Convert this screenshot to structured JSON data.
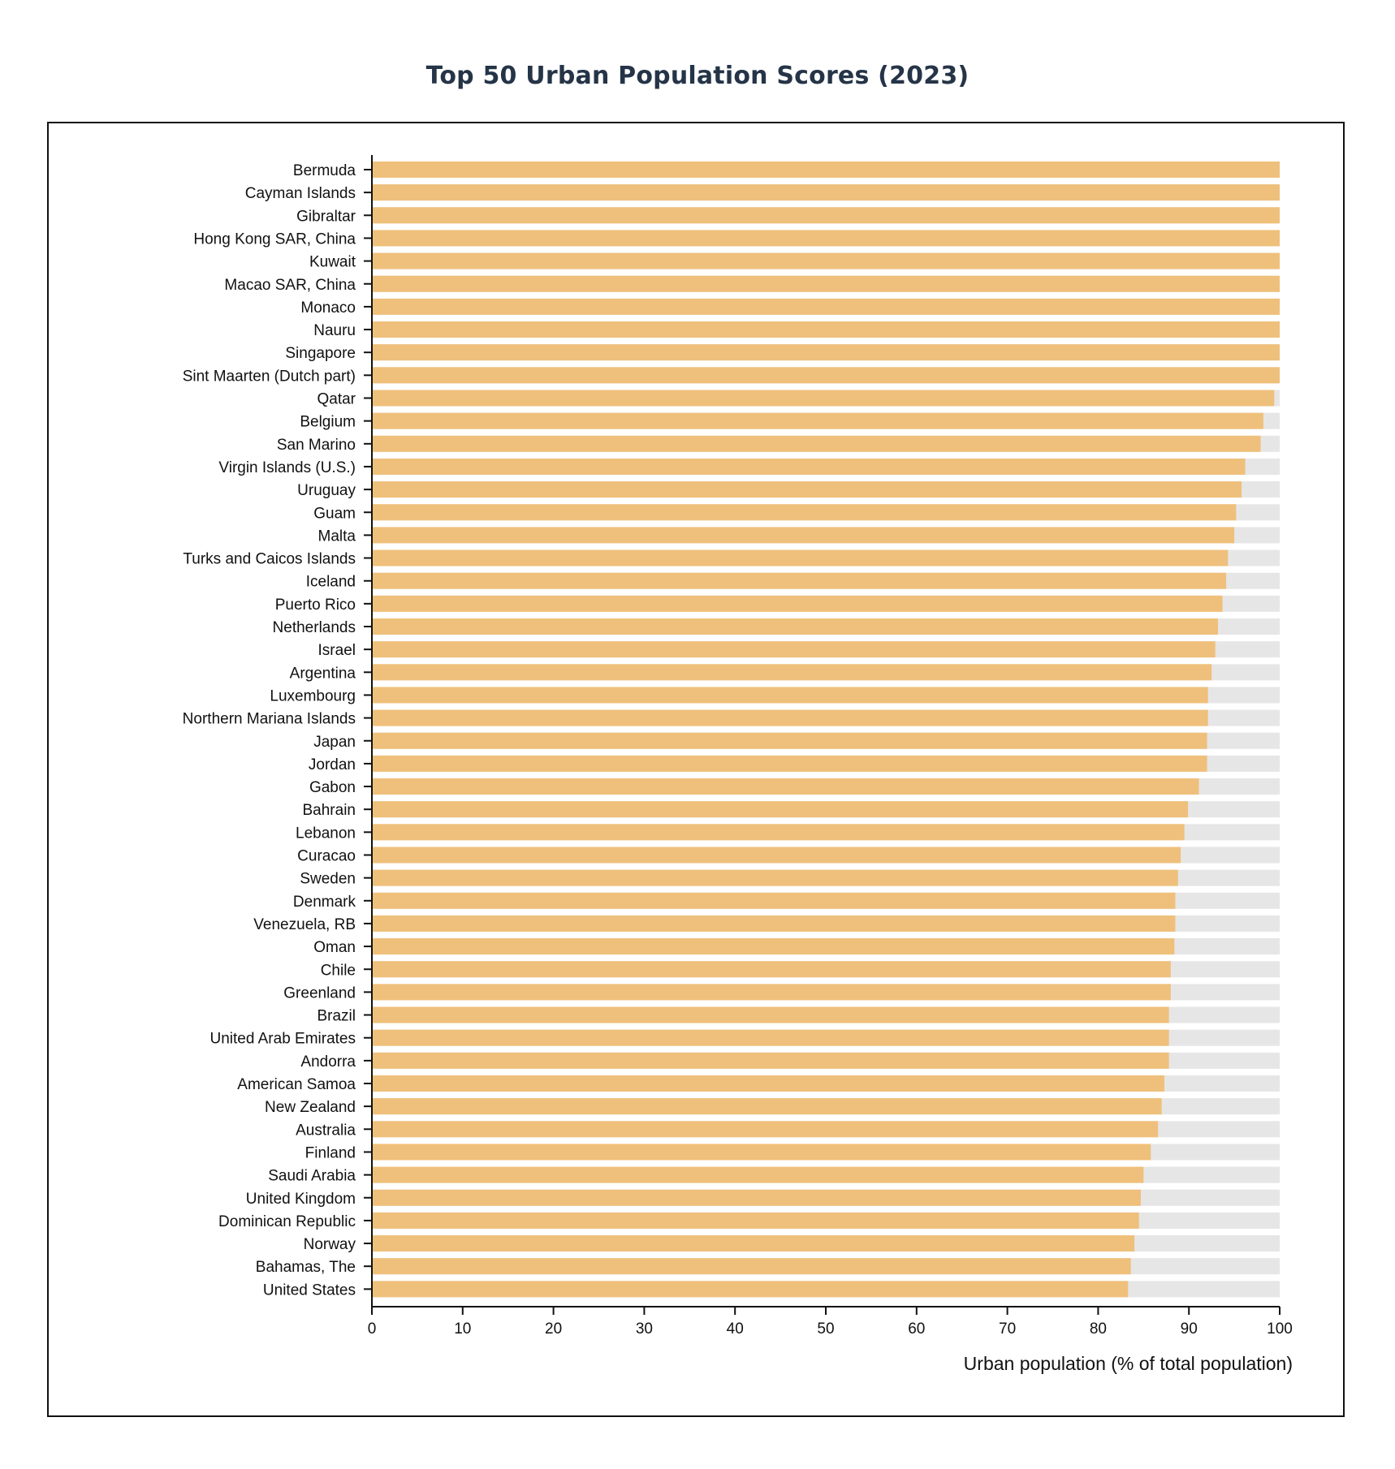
{
  "colors": {
    "bar": "#EFC07B",
    "track": "#E6E6E6",
    "title": "#253447",
    "axis": "#111111"
  },
  "chart_data": {
    "type": "bar",
    "orientation": "horizontal",
    "title": "Top 50 Urban Population Scores (2023)",
    "xlabel": "Urban population (% of total population)",
    "ylabel": "",
    "xlim": [
      0,
      100
    ],
    "xticks": [
      0,
      10,
      20,
      30,
      40,
      50,
      60,
      70,
      80,
      90,
      100
    ],
    "grid": false,
    "legend": "none",
    "categories": [
      "Bermuda",
      "Cayman Islands",
      "Gibraltar",
      "Hong Kong SAR, China",
      "Kuwait",
      "Macao SAR, China",
      "Monaco",
      "Nauru",
      "Singapore",
      "Sint Maarten (Dutch part)",
      "Qatar",
      "Belgium",
      "San Marino",
      "Virgin Islands (U.S.)",
      "Uruguay",
      "Guam",
      "Malta",
      "Turks and Caicos Islands",
      "Iceland",
      "Puerto Rico",
      "Netherlands",
      "Israel",
      "Argentina",
      "Luxembourg",
      "Northern Mariana Islands",
      "Japan",
      "Jordan",
      "Gabon",
      "Bahrain",
      "Lebanon",
      "Curacao",
      "Sweden",
      "Denmark",
      "Venezuela, RB",
      "Oman",
      "Chile",
      "Greenland",
      "Brazil",
      "United Arab Emirates",
      "Andorra",
      "American Samoa",
      "New Zealand",
      "Australia",
      "Finland",
      "Saudi Arabia",
      "United Kingdom",
      "Dominican Republic",
      "Norway",
      "Bahamas, The",
      "United States"
    ],
    "values": [
      100,
      100,
      100,
      100,
      100,
      100,
      100,
      100,
      100,
      100,
      99.4,
      98.2,
      97.9,
      96.2,
      95.8,
      95.2,
      95.0,
      94.3,
      94.1,
      93.7,
      93.2,
      92.9,
      92.5,
      92.1,
      92.1,
      92.0,
      92.0,
      91.1,
      89.9,
      89.5,
      89.1,
      88.8,
      88.5,
      88.5,
      88.4,
      88.0,
      88.0,
      87.8,
      87.8,
      87.8,
      87.3,
      87.0,
      86.6,
      85.8,
      85.0,
      84.7,
      84.5,
      84.0,
      83.6,
      83.3
    ]
  }
}
